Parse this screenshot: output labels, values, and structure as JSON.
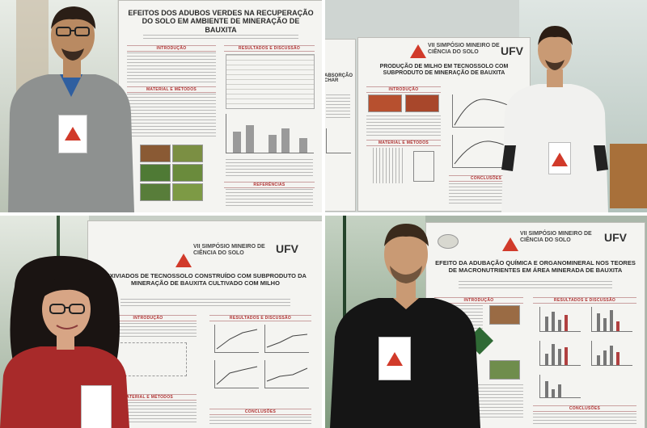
{
  "posters": [
    {
      "id": "p1",
      "title": "EFEITOS DOS ADUBOS VERDES NA RECUPERAÇÃO DO SOLO EM AMBIENTE DE MINERAÇÃO DE BAUXITA",
      "sections": [
        "INTRODUÇÃO",
        "MATERIAL E MÉTODOS",
        "RESULTADOS E DISCUSSÃO",
        "REFERÊNCIAS"
      ]
    },
    {
      "id": "p2",
      "title": "PRODUÇÃO DE MILHO EM TECNOSSOLO COM SUBPRODUTO DE MINERAÇÃO DE BAUXITA",
      "event": "VII SIMPÓSIO MINEIRO DE CIÊNCIA DO SOLO",
      "brand": "UFV",
      "sections": [
        "INTRODUÇÃO",
        "MATERIAL E MÉTODOS",
        "CONCLUSÕES"
      ],
      "side_text": "ABSORÇÃO CHAR"
    },
    {
      "id": "p3",
      "title": "LIXIVIADOS DE TECNOSSOLO CONSTRUÍDO COM SUBPRODUTO DA MINERAÇÃO DE BAUXITA CULTIVADO COM MILHO",
      "event": "VII SIMPÓSIO MINEIRO DE CIÊNCIA DO SOLO",
      "brand": "UFV",
      "sections": [
        "INTRODUÇÃO",
        "RESULTADOS E DISCUSSÃO",
        "MATERIAL E MÉTODOS",
        "CONCLUSÕES"
      ]
    },
    {
      "id": "p4",
      "title": "EFEITO DA ADUBAÇÃO QUÍMICA E ORGANOMINERAL NOS TEORES DE MACRONUTRIENTES EM ÁREA MINERADA DE BAUXITA",
      "event": "VII SIMPÓSIO MINEIRO DE CIÊNCIA DO SOLO",
      "brand": "UFV",
      "sections": [
        "INTRODUÇÃO",
        "RESULTADOS E DISCUSSÃO",
        "CONCLUSÕES"
      ]
    }
  ],
  "colors": {
    "accent_red": "#d13a2a",
    "poster_bg": "#f4f4f1",
    "section_red": "#b03030"
  }
}
